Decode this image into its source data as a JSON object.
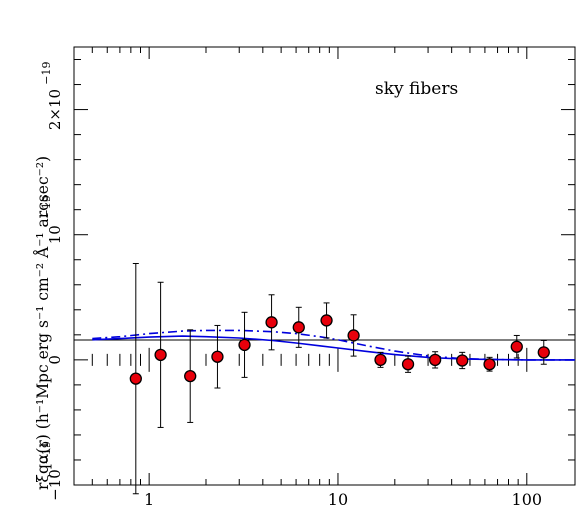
{
  "chart_data": {
    "type": "scatter",
    "title": "",
    "annotation": "sky fibers",
    "xlabel": "",
    "ylabel": "rξqα(r) (h⁻¹Mpc erg s⁻¹ cm⁻² Å⁻¹ arcsec⁻²)",
    "x_scale": "log",
    "xlim": [
      0.4,
      180
    ],
    "ylim": [
      -10,
      25
    ],
    "y_unit_exponent": "10⁻¹⁹",
    "x_tick_labels": [
      "1",
      "10",
      "100"
    ],
    "y_tick_labels": [
      "−10",
      "0",
      "10",
      "2×10"
    ],
    "y_tick_exponents": [
      "−19",
      "",
      "−19",
      "−19"
    ],
    "series": [
      {
        "kind": "points_with_errorbars",
        "color": "#e8000b",
        "points": [
          {
            "x": 0.85,
            "y": -1.5,
            "err": 9.2
          },
          {
            "x": 1.15,
            "y": 0.4,
            "err": 5.8
          },
          {
            "x": 1.65,
            "y": -1.3,
            "err": 3.7
          },
          {
            "x": 2.3,
            "y": 0.25,
            "err": 2.5
          },
          {
            "x": 3.2,
            "y": 1.2,
            "err": 2.6
          },
          {
            "x": 4.45,
            "y": 3.0,
            "err": 2.2
          },
          {
            "x": 6.2,
            "y": 2.6,
            "err": 1.6
          },
          {
            "x": 8.7,
            "y": 3.15,
            "err": 1.4
          },
          {
            "x": 12.1,
            "y": 1.95,
            "err": 1.65
          },
          {
            "x": 16.8,
            "y": 0.0,
            "err": 0.6
          },
          {
            "x": 23.5,
            "y": -0.35,
            "err": 0.65
          },
          {
            "x": 32.7,
            "y": 0.0,
            "err": 0.65
          },
          {
            "x": 45.5,
            "y": -0.05,
            "err": 0.65
          },
          {
            "x": 63.5,
            "y": -0.35,
            "err": 0.55
          },
          {
            "x": 88.5,
            "y": 1.05,
            "err": 0.9
          },
          {
            "x": 123,
            "y": 0.6,
            "err": 0.95
          }
        ]
      },
      {
        "kind": "line",
        "style": "solid",
        "color": "#0000dd",
        "x": [
          0.5,
          0.7,
          1.0,
          1.5,
          2.0,
          3.0,
          4.5,
          6.0,
          8.0,
          10.0,
          14.0,
          20.0,
          30.0,
          45.0,
          70.0,
          100.0,
          180.0
        ],
        "y": [
          1.6,
          1.7,
          1.82,
          1.9,
          1.85,
          1.75,
          1.55,
          1.35,
          1.12,
          0.95,
          0.68,
          0.42,
          0.2,
          0.07,
          0.02,
          0.0,
          0.0
        ]
      },
      {
        "kind": "line",
        "style": "dash-dot",
        "color": "#0000dd",
        "x": [
          0.5,
          0.7,
          1.0,
          1.5,
          2.0,
          3.0,
          4.5,
          6.0,
          8.0,
          10.0,
          14.0,
          20.0,
          30.0,
          45.0,
          70.0,
          100.0,
          180.0
        ],
        "y": [
          1.7,
          1.85,
          2.1,
          2.3,
          2.35,
          2.35,
          2.25,
          2.1,
          1.85,
          1.6,
          1.15,
          0.7,
          0.32,
          0.1,
          0.02,
          0.0,
          0.0
        ]
      }
    ]
  }
}
